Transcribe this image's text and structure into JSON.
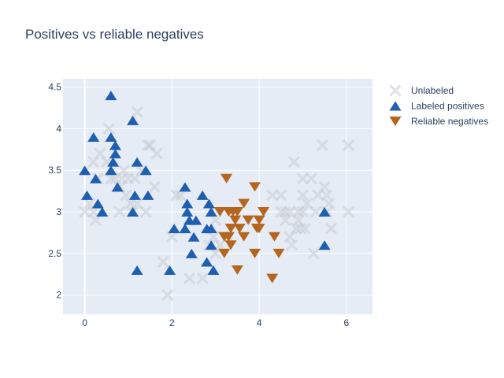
{
  "chart_data": {
    "type": "scatter",
    "title": "Positives vs reliable negatives",
    "xlabel": "",
    "ylabel": "",
    "xlim": [
      -0.5,
      6.6
    ],
    "ylim": [
      1.77,
      4.6
    ],
    "x_ticks": [
      0,
      2,
      4,
      6
    ],
    "x_tick_labels": [
      "0",
      "2",
      "4",
      "6"
    ],
    "y_ticks": [
      2,
      2.5,
      3,
      3.5,
      4,
      4.5
    ],
    "y_tick_labels": [
      "2",
      "2.5",
      "3",
      "3.5",
      "4",
      "4.5"
    ],
    "grid": true,
    "legend_position": "top-right",
    "series": [
      {
        "name": "Unlabeled",
        "marker": "x-thin",
        "color": "#c8ccd4",
        "points": [
          [
            0.0,
            3.0
          ],
          [
            0.1,
            3.1
          ],
          [
            0.2,
            3.6
          ],
          [
            0.2,
            3.0
          ],
          [
            0.25,
            2.9
          ],
          [
            0.3,
            3.4
          ],
          [
            0.35,
            3.7
          ],
          [
            0.5,
            3.6
          ],
          [
            0.55,
            4.0
          ],
          [
            0.6,
            3.4
          ],
          [
            0.7,
            3.4
          ],
          [
            0.8,
            3.3
          ],
          [
            0.8,
            3.0
          ],
          [
            0.85,
            3.4
          ],
          [
            0.9,
            3.5
          ],
          [
            0.95,
            3.2
          ],
          [
            1.0,
            3.4
          ],
          [
            1.05,
            3.1
          ],
          [
            1.1,
            3.0
          ],
          [
            1.15,
            3.4
          ],
          [
            1.2,
            4.2
          ],
          [
            1.2,
            3.1
          ],
          [
            1.3,
            3.5
          ],
          [
            1.4,
            3.0
          ],
          [
            1.45,
            3.8
          ],
          [
            1.5,
            3.8
          ],
          [
            1.6,
            3.3
          ],
          [
            1.65,
            3.7
          ],
          [
            1.8,
            2.4
          ],
          [
            1.9,
            2.0
          ],
          [
            2.0,
            2.7
          ],
          [
            2.1,
            3.2
          ],
          [
            2.2,
            3.2
          ],
          [
            2.4,
            2.2
          ],
          [
            2.7,
            2.2
          ],
          [
            2.85,
            2.6
          ],
          [
            2.95,
            2.7
          ],
          [
            3.0,
            2.9
          ],
          [
            3.0,
            2.5
          ],
          [
            3.1,
            2.6
          ],
          [
            4.3,
            3.2
          ],
          [
            4.5,
            3.2
          ],
          [
            4.5,
            3.0
          ],
          [
            4.6,
            3.0
          ],
          [
            4.6,
            2.9
          ],
          [
            4.7,
            3.0
          ],
          [
            4.7,
            2.7
          ],
          [
            4.75,
            2.6
          ],
          [
            4.8,
            3.6
          ],
          [
            4.85,
            2.8
          ],
          [
            4.9,
            3.0
          ],
          [
            4.9,
            2.9
          ],
          [
            4.95,
            2.8
          ],
          [
            5.0,
            3.4
          ],
          [
            5.0,
            3.2
          ],
          [
            5.0,
            3.0
          ],
          [
            5.05,
            2.8
          ],
          [
            5.1,
            3.1
          ],
          [
            5.2,
            3.4
          ],
          [
            5.25,
            2.5
          ],
          [
            5.3,
            3.0
          ],
          [
            5.35,
            3.2
          ],
          [
            5.45,
            3.8
          ],
          [
            5.5,
            3.3
          ],
          [
            5.55,
            3.2
          ],
          [
            5.55,
            3.0
          ],
          [
            5.6,
            3.1
          ],
          [
            5.65,
            2.8
          ],
          [
            6.05,
            3.8
          ],
          [
            6.05,
            3.0
          ]
        ]
      },
      {
        "name": "Labeled positives",
        "marker": "triangle-up",
        "color": "#1f5fb0",
        "points": [
          [
            0.0,
            3.5
          ],
          [
            0.05,
            3.2
          ],
          [
            0.2,
            3.9
          ],
          [
            0.25,
            3.4
          ],
          [
            0.3,
            3.1
          ],
          [
            0.4,
            3.0
          ],
          [
            0.6,
            3.9
          ],
          [
            0.6,
            3.5
          ],
          [
            0.65,
            3.6
          ],
          [
            0.7,
            3.8
          ],
          [
            0.7,
            3.7
          ],
          [
            0.75,
            3.3
          ],
          [
            0.6,
            4.4
          ],
          [
            1.1,
            4.1
          ],
          [
            1.1,
            3.0
          ],
          [
            1.15,
            3.2
          ],
          [
            1.2,
            3.6
          ],
          [
            1.2,
            2.3
          ],
          [
            1.4,
            3.5
          ],
          [
            1.45,
            3.2
          ],
          [
            1.95,
            2.3
          ],
          [
            2.05,
            2.8
          ],
          [
            2.3,
            3.3
          ],
          [
            2.3,
            2.8
          ],
          [
            2.35,
            3.1
          ],
          [
            2.35,
            3.0
          ],
          [
            2.4,
            2.9
          ],
          [
            2.45,
            2.5
          ],
          [
            2.5,
            2.7
          ],
          [
            2.55,
            2.9
          ],
          [
            2.7,
            3.2
          ],
          [
            2.8,
            2.8
          ],
          [
            2.8,
            2.4
          ],
          [
            2.85,
            3.1
          ],
          [
            2.9,
            3.0
          ],
          [
            2.9,
            2.8
          ],
          [
            2.9,
            2.6
          ],
          [
            2.95,
            2.3
          ],
          [
            5.5,
            3.0
          ],
          [
            5.5,
            2.6
          ]
        ]
      },
      {
        "name": "Reliable negatives",
        "marker": "triangle-down",
        "color": "#b5651d",
        "points": [
          [
            3.1,
            3.0
          ],
          [
            3.2,
            2.5
          ],
          [
            3.2,
            2.7
          ],
          [
            3.25,
            3.4
          ],
          [
            3.3,
            3.0
          ],
          [
            3.3,
            2.7
          ],
          [
            3.35,
            2.8
          ],
          [
            3.35,
            2.6
          ],
          [
            3.4,
            3.0
          ],
          [
            3.45,
            2.9
          ],
          [
            3.5,
            3.0
          ],
          [
            3.5,
            2.3
          ],
          [
            3.55,
            2.8
          ],
          [
            3.65,
            3.1
          ],
          [
            3.65,
            2.7
          ],
          [
            3.75,
            2.9
          ],
          [
            3.9,
            3.3
          ],
          [
            3.9,
            2.5
          ],
          [
            3.95,
            2.8
          ],
          [
            4.0,
            2.9
          ],
          [
            4.1,
            3.0
          ],
          [
            4.0,
            2.8
          ],
          [
            4.3,
            2.2
          ],
          [
            4.35,
            2.7
          ],
          [
            4.45,
            2.5
          ]
        ]
      }
    ]
  }
}
